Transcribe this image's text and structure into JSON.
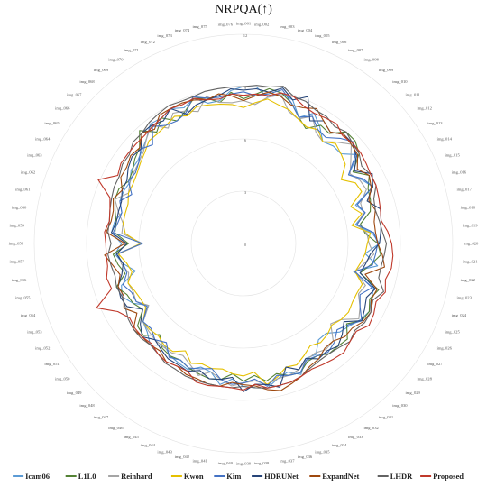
{
  "chart_data": {
    "type": "radar",
    "title": "NRPQA(↑)",
    "categories": [
      "img_001",
      "img_002",
      "img_003",
      "img_004",
      "img_005",
      "img_006",
      "img_007",
      "img_008",
      "img_009",
      "img_010",
      "img_011",
      "img_012",
      "img_013",
      "img_014",
      "img_015",
      "img_016",
      "img_017",
      "img_018",
      "img_019",
      "img_020",
      "img_021",
      "img_022",
      "img_023",
      "img_024",
      "img_025",
      "img_026",
      "img_027",
      "img_028",
      "img_029",
      "img_030",
      "img_031",
      "img_032",
      "img_033",
      "img_034",
      "img_035",
      "img_036",
      "img_037",
      "img_038",
      "img_039",
      "img_040",
      "img_041",
      "img_042",
      "img_043",
      "img_044",
      "img_045",
      "img_046",
      "img_047",
      "img_048",
      "img_049",
      "img_050",
      "img_051",
      "img_052",
      "img_053",
      "img_054",
      "img_055",
      "img_056",
      "img_057",
      "img_058",
      "img_059",
      "img_060",
      "img_061",
      "img_062",
      "img_063",
      "img_064",
      "img_065",
      "img_066",
      "img_067",
      "img_068",
      "img_069",
      "img_070",
      "img_071",
      "img_072",
      "img_073",
      "img_074",
      "img_075",
      "img_076"
    ],
    "rlim": [
      0,
      12
    ],
    "rticks": [
      0,
      3,
      6,
      9,
      12
    ],
    "grid": true,
    "legend_position": "bottom",
    "series": [
      {
        "name": "Icam06",
        "color": "#5b9bd5",
        "values": [
          9.0,
          9.0,
          8.5,
          8.9,
          8.7,
          7.9,
          8.5,
          8.0,
          7.4,
          7.6,
          7.6,
          8.3,
          7.2,
          7.7,
          8.1,
          6.8,
          7.2,
          6.5,
          7.4,
          7.8,
          7.0,
          7.8,
          6.5,
          7.9,
          8.0,
          8.2,
          8.0,
          7.7,
          7.5,
          7.0,
          7.0,
          7.6,
          7.5,
          8.2,
          7.8,
          8.0,
          8.4,
          8.3,
          8.2,
          7.8,
          8.2,
          7.6,
          7.5,
          7.9,
          7.8,
          7.7,
          7.4,
          7.9,
          7.5,
          7.3,
          6.5,
          7.2,
          7.6,
          7.4,
          6.4,
          7.0,
          7.4,
          7.0,
          7.6,
          7.5,
          7.2,
          7.5,
          7.5,
          7.4,
          7.7,
          7.7,
          7.9,
          8.2,
          8.7,
          8.6,
          8.8,
          8.5,
          8.8,
          8.3,
          8.3,
          8.8
        ]
      },
      {
        "name": "L1L0",
        "color": "#548235",
        "values": [
          8.3,
          8.6,
          9.0,
          8.9,
          8.5,
          7.9,
          7.5,
          8.1,
          8.0,
          8.7,
          8.7,
          8.4,
          7.5,
          8.2,
          7.8,
          7.7,
          7.5,
          6.8,
          7.0,
          7.7,
          7.9,
          7.4,
          6.9,
          8.2,
          7.9,
          8.2,
          8.1,
          7.5,
          8.1,
          8.0,
          8.0,
          7.7,
          7.7,
          8.1,
          8.0,
          7.7,
          8.0,
          7.6,
          7.9,
          7.5,
          7.9,
          8.0,
          7.9,
          7.8,
          7.6,
          7.7,
          7.6,
          7.1,
          7.8,
          7.7,
          6.9,
          7.2,
          7.3,
          7.7,
          7.0,
          7.3,
          7.5,
          6.6,
          7.4,
          7.4,
          7.6,
          7.8,
          7.8,
          7.5,
          7.6,
          7.9,
          8.1,
          8.8,
          8.1,
          8.6,
          8.0,
          8.3,
          8.8,
          8.6,
          8.2,
          8.7
        ]
      },
      {
        "name": "Reinhard",
        "color": "#a5a5a5",
        "values": [
          8.2,
          8.0,
          8.5,
          8.8,
          8.0,
          7.8,
          8.3,
          7.6,
          7.4,
          7.9,
          8.4,
          7.8,
          7.3,
          7.6,
          7.7,
          7.1,
          7.1,
          6.6,
          7.1,
          7.2,
          7.5,
          7.0,
          6.6,
          7.4,
          7.2,
          7.6,
          7.9,
          7.1,
          6.8,
          7.6,
          7.7,
          7.5,
          7.6,
          7.9,
          8.0,
          8.0,
          8.2,
          7.9,
          8.0,
          8.2,
          7.9,
          7.6,
          8.0,
          7.6,
          7.3,
          7.5,
          7.5,
          7.5,
          7.4,
          7.3,
          6.5,
          7.0,
          6.9,
          7.0,
          6.8,
          7.1,
          7.2,
          5.8,
          7.0,
          7.0,
          7.4,
          7.8,
          7.2,
          7.4,
          7.5,
          7.6,
          7.8,
          8.2,
          8.6,
          7.9,
          8.5,
          8.3,
          8.0,
          8.7,
          8.2,
          8.1
        ]
      },
      {
        "name": "Kwon",
        "color": "#e5c000",
        "values": [
          7.8,
          8.1,
          8.4,
          8.2,
          8.1,
          7.8,
          7.6,
          7.8,
          7.4,
          7.8,
          7.6,
          7.4,
          6.7,
          7.3,
          7.4,
          6.5,
          7.0,
          6.3,
          7.3,
          7.1,
          7.0,
          6.8,
          6.6,
          7.2,
          7.1,
          7.1,
          7.2,
          7.1,
          6.9,
          7.1,
          7.2,
          7.0,
          7.3,
          7.6,
          7.5,
          7.9,
          8.2,
          7.4,
          7.6,
          7.5,
          7.3,
          7.4,
          7.3,
          7.5,
          7.0,
          7.4,
          7.4,
          7.2,
          7.3,
          7.3,
          6.7,
          6.7,
          6.8,
          7.0,
          6.6,
          6.8,
          7.2,
          5.9,
          6.8,
          7.0,
          7.0,
          7.0,
          7.2,
          7.2,
          7.3,
          7.5,
          7.7,
          8.0,
          8.0,
          8.1,
          8.3,
          8.0,
          8.3,
          8.2,
          8.1,
          8.0
        ]
      },
      {
        "name": "Kim",
        "color": "#4472c4",
        "values": [
          8.7,
          8.5,
          8.7,
          9.1,
          8.5,
          7.9,
          8.3,
          7.8,
          7.7,
          8.2,
          8.6,
          8.1,
          7.2,
          7.8,
          8.1,
          6.9,
          7.2,
          6.6,
          7.5,
          7.7,
          7.6,
          7.5,
          6.6,
          7.8,
          7.3,
          7.6,
          8.1,
          7.6,
          7.3,
          7.7,
          7.9,
          7.7,
          7.6,
          8.1,
          8.0,
          7.8,
          8.3,
          7.8,
          8.0,
          8.1,
          7.9,
          7.4,
          7.6,
          7.8,
          7.6,
          7.8,
          7.2,
          7.5,
          7.2,
          7.3,
          6.6,
          7.0,
          7.0,
          7.3,
          6.9,
          7.0,
          7.3,
          5.8,
          7.5,
          7.3,
          7.2,
          7.5,
          7.0,
          7.5,
          7.4,
          7.6,
          8.0,
          7.7,
          8.5,
          8.1,
          8.0,
          8.2,
          8.9,
          8.6,
          8.5,
          8.6
        ]
      },
      {
        "name": "HDRUNet",
        "color": "#264478",
        "values": [
          8.8,
          8.9,
          8.8,
          9.2,
          8.7,
          9.2,
          8.0,
          8.4,
          8.1,
          8.5,
          8.5,
          8.2,
          7.6,
          8.4,
          8.1,
          7.5,
          8.1,
          8.0,
          7.9,
          7.8,
          7.3,
          7.1,
          6.9,
          8.0,
          7.7,
          7.9,
          8.1,
          7.3,
          7.7,
          8.0,
          7.8,
          7.9,
          7.5,
          7.9,
          7.5,
          8.5,
          8.2,
          8.1,
          8.5,
          7.7,
          7.9,
          8.0,
          7.7,
          8.0,
          7.9,
          7.9,
          7.7,
          7.5,
          7.9,
          7.5,
          6.9,
          7.6,
          7.7,
          7.6,
          7.2,
          7.0,
          7.3,
          6.7,
          7.6,
          7.4,
          7.4,
          7.4,
          7.6,
          7.6,
          7.9,
          8.1,
          8.0,
          8.6,
          8.6,
          8.4,
          8.8,
          8.1,
          8.4,
          8.5,
          8.6,
          8.9
        ]
      },
      {
        "name": "ExpandNet",
        "color": "#9e480e",
        "values": [
          8.2,
          8.5,
          8.8,
          8.7,
          8.4,
          8.5,
          8.8,
          8.4,
          8.1,
          8.5,
          8.4,
          8.3,
          7.8,
          8.2,
          8.0,
          7.6,
          7.8,
          7.6,
          7.6,
          7.7,
          8.0,
          8.2,
          7.2,
          8.1,
          8.0,
          8.3,
          8.2,
          7.9,
          7.9,
          7.6,
          7.6,
          7.9,
          8.0,
          8.3,
          8.5,
          8.7,
          8.5,
          8.2,
          8.1,
          8.0,
          8.3,
          8.3,
          8.2,
          8.2,
          8.0,
          8.1,
          7.8,
          7.9,
          7.9,
          8.0,
          7.3,
          7.8,
          7.5,
          7.6,
          7.3,
          7.6,
          8.0,
          6.8,
          7.9,
          7.7,
          7.7,
          7.9,
          7.6,
          8.0,
          8.0,
          8.2,
          8.1,
          8.6,
          8.3,
          8.8,
          8.8,
          8.8,
          8.7,
          8.5,
          8.7,
          8.5
        ]
      },
      {
        "name": "LHDR",
        "color": "#636363",
        "values": [
          9.0,
          9.1,
          9.1,
          9.3,
          8.9,
          8.9,
          8.7,
          8.7,
          8.5,
          8.7,
          8.5,
          8.4,
          8.1,
          8.3,
          8.3,
          7.9,
          7.8,
          7.9,
          8.0,
          8.2,
          8.1,
          8.0,
          8.0,
          8.5,
          8.1,
          8.3,
          8.3,
          8.1,
          8.3,
          8.1,
          8.0,
          8.0,
          8.1,
          8.3,
          8.4,
          8.4,
          8.4,
          8.3,
          8.2,
          8.3,
          8.3,
          8.3,
          8.3,
          8.3,
          8.2,
          8.2,
          8.0,
          7.9,
          8.0,
          8.0,
          7.9,
          7.7,
          7.6,
          7.7,
          7.6,
          7.7,
          7.8,
          7.6,
          7.8,
          7.8,
          7.9,
          8.0,
          8.1,
          8.1,
          8.3,
          8.3,
          8.6,
          8.6,
          8.8,
          8.9,
          9.0,
          8.9,
          8.9,
          9.0,
          9.0,
          9.0
        ]
      },
      {
        "name": "Proposed",
        "color": "#c0392b",
        "values": [
          8.5,
          8.6,
          8.6,
          8.9,
          8.9,
          8.6,
          8.5,
          8.6,
          8.7,
          8.4,
          8.5,
          8.5,
          8.4,
          8.3,
          8.3,
          8.2,
          8.1,
          8.0,
          8.3,
          8.5,
          8.6,
          8.6,
          8.4,
          8.6,
          8.3,
          8.5,
          8.6,
          8.2,
          8.3,
          8.5,
          8.4,
          8.3,
          8.2,
          8.3,
          8.4,
          8.4,
          8.4,
          8.1,
          8.4,
          8.3,
          8.3,
          8.4,
          8.4,
          8.0,
          8.0,
          8.1,
          8.0,
          7.8,
          7.9,
          7.9,
          7.8,
          8.2,
          9.2,
          8.0,
          8.1,
          7.9,
          7.9,
          7.9,
          8.0,
          7.8,
          7.9,
          8.1,
          9.1,
          8.2,
          8.4,
          8.4,
          8.4,
          8.4,
          8.5,
          8.6,
          8.8,
          8.7,
          8.8,
          8.5,
          8.4,
          8.6
        ]
      }
    ]
  }
}
